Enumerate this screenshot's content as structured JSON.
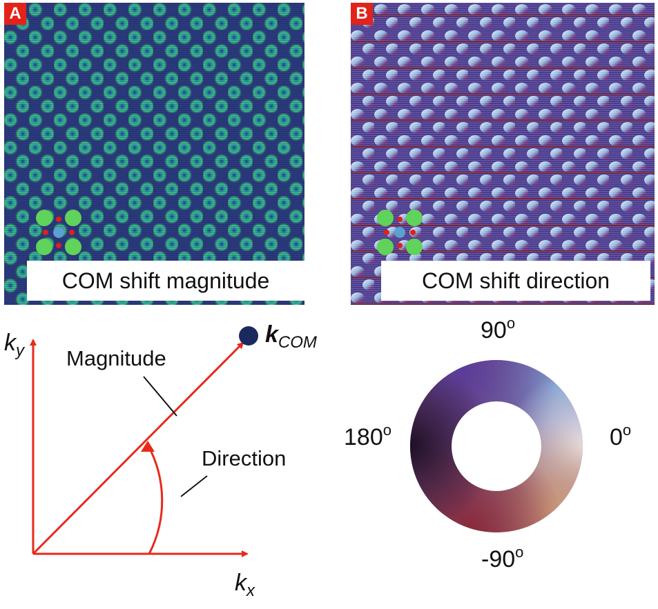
{
  "panel_a": {
    "tag": "A",
    "caption": "COM shift magnitude"
  },
  "panel_b": {
    "tag": "B",
    "caption": "COM shift direction"
  },
  "vector_diagram": {
    "ky_base": "k",
    "ky_sub": "y",
    "kx_base": "k",
    "kx_sub": "x",
    "kcom_base": "k",
    "kcom_sub": "COM",
    "magnitude_label": "Magnitude",
    "direction_label": "Direction"
  },
  "color_wheel": {
    "top_label": "90",
    "left_label": "180",
    "right_label": "0",
    "bottom_label": "-90",
    "degree_mark": "o"
  },
  "colors": {
    "arrow": "#e8291c",
    "tag": "#e2231a",
    "kcom_dot": "#1b2a5e"
  }
}
